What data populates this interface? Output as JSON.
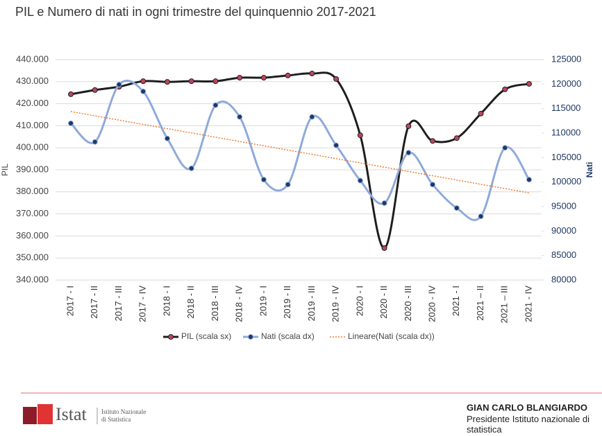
{
  "chart_data": {
    "type": "line",
    "title": "PIL e Numero di nati in ogni trimestre del quinquennio 2017-2021",
    "categories": [
      "2017 - I",
      "2017 - II",
      "2017 - III",
      "2017 - IV",
      "2018 - I",
      "2018 - II",
      "2018 - III",
      "2018 - IV",
      "2019 - I",
      "2019 - II",
      "2019 - III",
      "2019 - IV",
      "2020 - I",
      "2020 - II",
      "2020 - III",
      "2020 - IV",
      "2021 - I",
      "2021 – II",
      "2021 – III",
      "2021 - IV"
    ],
    "series": [
      {
        "name": "PIL (scala sx)",
        "color": "#1e1e1e",
        "marker_color": "#b8485e",
        "axis": "y",
        "values": [
          424300,
          426200,
          427700,
          430200,
          429900,
          430200,
          430200,
          431800,
          431800,
          432800,
          433700,
          431200,
          405700,
          354500,
          409800,
          403100,
          404400,
          415500,
          426500,
          429000
        ]
      },
      {
        "name": "Nati (scala dx)",
        "color": "#8eaadb",
        "marker_color": "#1f3864",
        "axis": "y2",
        "values": [
          112000,
          108200,
          119900,
          118500,
          108900,
          102800,
          115700,
          113300,
          100500,
          99500,
          113300,
          107500,
          100300,
          95700,
          106000,
          99500,
          94700,
          93000,
          107000,
          100500
        ]
      },
      {
        "name": "Lineare(Nati (scala dx))",
        "color": "#ed7d31",
        "axis": "y2",
        "style": "dotted",
        "values": [
          114400,
          113526,
          112652,
          111778,
          110904,
          110030,
          109156,
          108282,
          107408,
          106534,
          105660,
          104786,
          103912,
          103038,
          102164,
          101290,
          100416,
          99542,
          98668,
          97794
        ]
      }
    ],
    "ylabel": "PIL",
    "y2label": "Nati",
    "ylim": [
      340000,
      440000
    ],
    "yticks": [
      {
        "value": 340000,
        "label": "340.000"
      },
      {
        "value": 350000,
        "label": "350.000"
      },
      {
        "value": 360000,
        "label": "360.000"
      },
      {
        "value": 370000,
        "label": "370.000"
      },
      {
        "value": 380000,
        "label": "380.000"
      },
      {
        "value": 390000,
        "label": "390.000"
      },
      {
        "value": 400000,
        "label": "400.000"
      },
      {
        "value": 410000,
        "label": "410.000"
      },
      {
        "value": 420000,
        "label": "420.000"
      },
      {
        "value": 430000,
        "label": "430.000"
      },
      {
        "value": 440000,
        "label": "440.000"
      }
    ],
    "y2lim": [
      80000,
      125000
    ],
    "y2ticks": [
      80000,
      85000,
      90000,
      95000,
      100000,
      105000,
      110000,
      115000,
      120000,
      125000
    ],
    "grid": true,
    "legend": "bottom"
  },
  "footer": {
    "logo": "Istat",
    "logo_sub1": "Istituto Nazionale",
    "logo_sub2": "di Statistica",
    "name": "GIAN CARLO BLANGIARDO",
    "role": "Presidente Istituto nazionale di statistica"
  }
}
